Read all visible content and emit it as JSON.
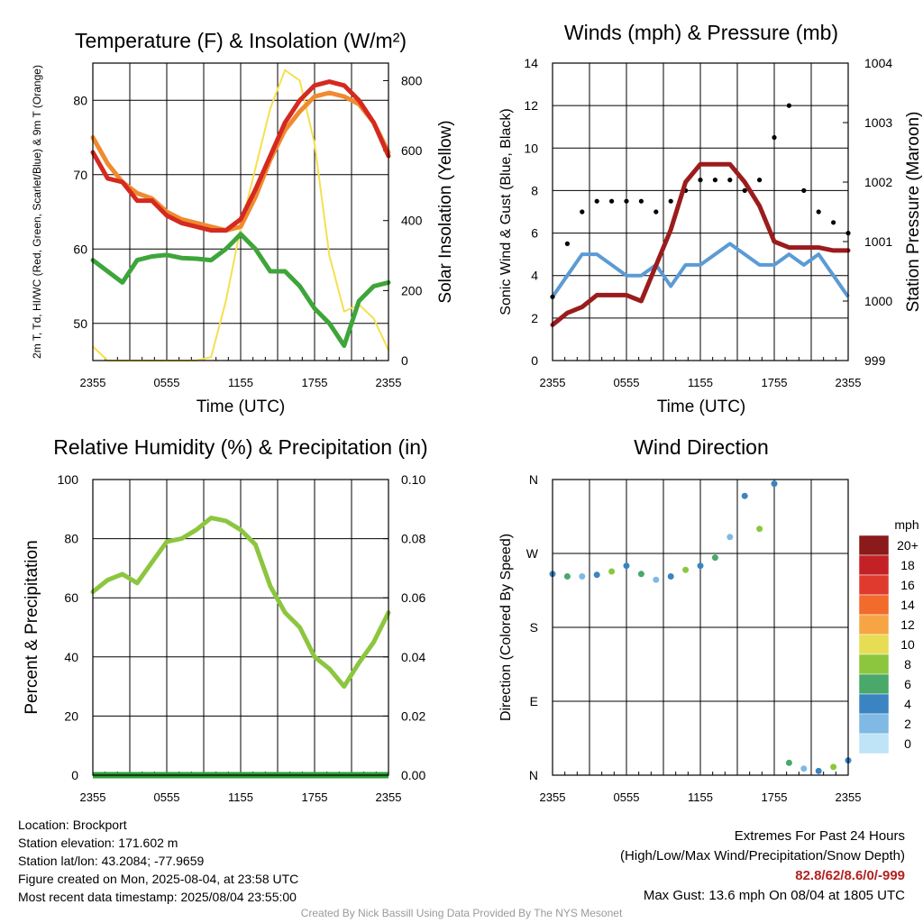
{
  "chart_data": [
    {
      "type": "line",
      "title": "Temperature (F) & Insolation (W/m²)",
      "xlabel": "Time (UTC)",
      "ylabel": "2m T, Td, HI/WC (Red, Green, Scarlet/Blue) & 9m T (Orange)",
      "ylabel_right": "Solar Insolation (Yellow)",
      "x_ticks": [
        "2355",
        "0555",
        "1155",
        "1755",
        "2355"
      ],
      "ylim": [
        45,
        85
      ],
      "y_ticks": [
        50,
        60,
        70,
        80
      ],
      "ylim_right": [
        0,
        850
      ],
      "y_ticks_right": [
        0,
        200,
        400,
        600,
        800
      ],
      "grid": true,
      "colors": {
        "temp": "#d42a20",
        "heat_index": "#c0282b",
        "dewpoint": "#3ea53a",
        "temp_9m": "#f08a30",
        "insolation": "#f5e04e"
      },
      "series": [
        {
          "key": "temp_9m",
          "values": [
            75,
            71.5,
            69,
            67.5,
            66.8,
            65,
            64,
            63.5,
            63,
            62.5,
            63,
            67,
            72,
            76,
            78.5,
            80.5,
            81,
            80.5,
            79.5,
            77,
            73
          ]
        },
        {
          "key": "temp",
          "values": [
            73,
            69.5,
            69,
            66.5,
            66.5,
            64.5,
            63.5,
            63,
            62.5,
            62.5,
            64,
            68,
            72.5,
            77,
            80,
            82,
            82.5,
            82,
            80,
            77,
            72.5
          ]
        },
        {
          "key": "dewpoint",
          "values": [
            58.5,
            57,
            55.5,
            58.5,
            59,
            59.2,
            58.8,
            58.7,
            58.5,
            60,
            62,
            60,
            57,
            57,
            55,
            52,
            50,
            47,
            53,
            55,
            55.5
          ]
        },
        {
          "key": "insolation",
          "values": [
            40,
            0,
            0,
            0,
            0,
            0,
            0,
            0,
            10,
            170,
            380,
            550,
            720,
            830,
            800,
            620,
            300,
            140,
            160,
            120,
            30
          ]
        }
      ]
    },
    {
      "type": "line",
      "title": "Winds (mph) & Pressure (mb)",
      "xlabel": "Time (UTC)",
      "ylabel": "Sonic Wind & Gust (Blue, Black)",
      "ylabel_right": "Station Pressure (Maroon)",
      "x_ticks": [
        "2355",
        "0555",
        "1155",
        "1755",
        "2355"
      ],
      "ylim": [
        0,
        14
      ],
      "y_ticks": [
        0,
        2,
        4,
        6,
        8,
        10,
        12,
        14
      ],
      "ylim_right": [
        999,
        1004
      ],
      "y_ticks_right": [
        999,
        1000,
        1001,
        1002,
        1003,
        1004
      ],
      "grid": true,
      "colors": {
        "wind": "#5b9bd5",
        "gust": "#000000",
        "pressure": "#9b1c1c"
      },
      "series": [
        {
          "key": "wind",
          "values": [
            3,
            4,
            5,
            5,
            4.5,
            4,
            4,
            4.5,
            3.5,
            4.5,
            4.5,
            5,
            5.5,
            5,
            4.5,
            4.5,
            5,
            4.5,
            5,
            4,
            3
          ]
        },
        {
          "key": "gust",
          "values": [
            3,
            5.5,
            7,
            7.5,
            7.5,
            7.5,
            7.5,
            7,
            7.5,
            8,
            8.5,
            8.5,
            8.5,
            8,
            8.5,
            10.5,
            12,
            8,
            7,
            6.5,
            6
          ]
        },
        {
          "key": "pressure",
          "values": [
            999.6,
            999.8,
            999.9,
            1000.1,
            1000.1,
            1000.1,
            1000.0,
            1000.6,
            1001.2,
            1002.0,
            1002.3,
            1002.3,
            1002.3,
            1002.0,
            1001.6,
            1001.0,
            1000.9,
            1000.9,
            1000.9,
            1000.85,
            1000.85
          ]
        }
      ]
    },
    {
      "type": "line",
      "title": "Relative Humidity (%) & Precipitation (in)",
      "xlabel": "",
      "ylabel": "Percent & Precipitation",
      "x_ticks": [
        "2355",
        "0555",
        "1155",
        "1755",
        "2355"
      ],
      "ylim": [
        0,
        100
      ],
      "y_ticks": [
        0,
        20,
        40,
        60,
        80,
        100
      ],
      "ylim_right": [
        0,
        0.1
      ],
      "y_ticks_right": [
        "0.00",
        "0.02",
        "0.04",
        "0.06",
        "0.08",
        "0.10"
      ],
      "grid": true,
      "colors": {
        "rh": "#8cc63f",
        "precip": "#2f9e3a"
      },
      "series": [
        {
          "key": "rh",
          "values": [
            62,
            66,
            68,
            65,
            72,
            79,
            80,
            83,
            87,
            86,
            83,
            78,
            64,
            55,
            50,
            40,
            36,
            30,
            38,
            45,
            55
          ]
        },
        {
          "key": "precip",
          "values": [
            0,
            0,
            0,
            0,
            0,
            0,
            0,
            0,
            0,
            0,
            0,
            0,
            0,
            0,
            0,
            0,
            0,
            0,
            0,
            0,
            0
          ]
        }
      ]
    },
    {
      "type": "scatter",
      "title": "Wind Direction",
      "xlabel": "",
      "ylabel": "Direction (Colored By Speed)",
      "x_ticks": [
        "2355",
        "0555",
        "1155",
        "1755",
        "2355"
      ],
      "y_ticks": [
        "N",
        "E",
        "S",
        "W",
        "N"
      ],
      "ylim": [
        0,
        360
      ],
      "grid": true,
      "series": [
        {
          "key": "direction",
          "values": [
            245,
            242,
            242,
            244,
            248,
            255,
            245,
            238,
            242,
            250,
            255,
            265,
            290,
            340,
            300,
            355,
            15,
            8,
            5,
            10,
            18
          ]
        }
      ],
      "legend": {
        "title": "mph",
        "labels": [
          "20+",
          "18",
          "16",
          "14",
          "12",
          "10",
          "8",
          "6",
          "4",
          "2",
          "0"
        ],
        "colors": [
          "#8b1a1a",
          "#c42126",
          "#e03a2f",
          "#f26b2c",
          "#f7a544",
          "#e6dd54",
          "#8cc63f",
          "#49a86a",
          "#3a84c2",
          "#7fb9e4",
          "#bfe3f7"
        ]
      }
    }
  ],
  "info": {
    "location": "Location: Brockport",
    "elevation": "Station elevation: 171.602 m",
    "latlon": "Station lat/lon: 43.2084; -77.9659",
    "created": "Figure created on Mon, 2025-08-04, at 23:58 UTC",
    "recent": "Most recent data timestamp: 2025/08/04 23:55:00"
  },
  "extremes": {
    "line1": "Extremes For Past 24 Hours",
    "line2": "(High/Low/Max Wind/Precipitation/Snow Depth)",
    "values": "82.8/62/8.6/0/-999",
    "gust": "Max Gust: 13.6 mph On 08/04 at 1805 UTC"
  },
  "footer": "Created By Nick Bassill Using Data Provided By The NYS Mesonet"
}
